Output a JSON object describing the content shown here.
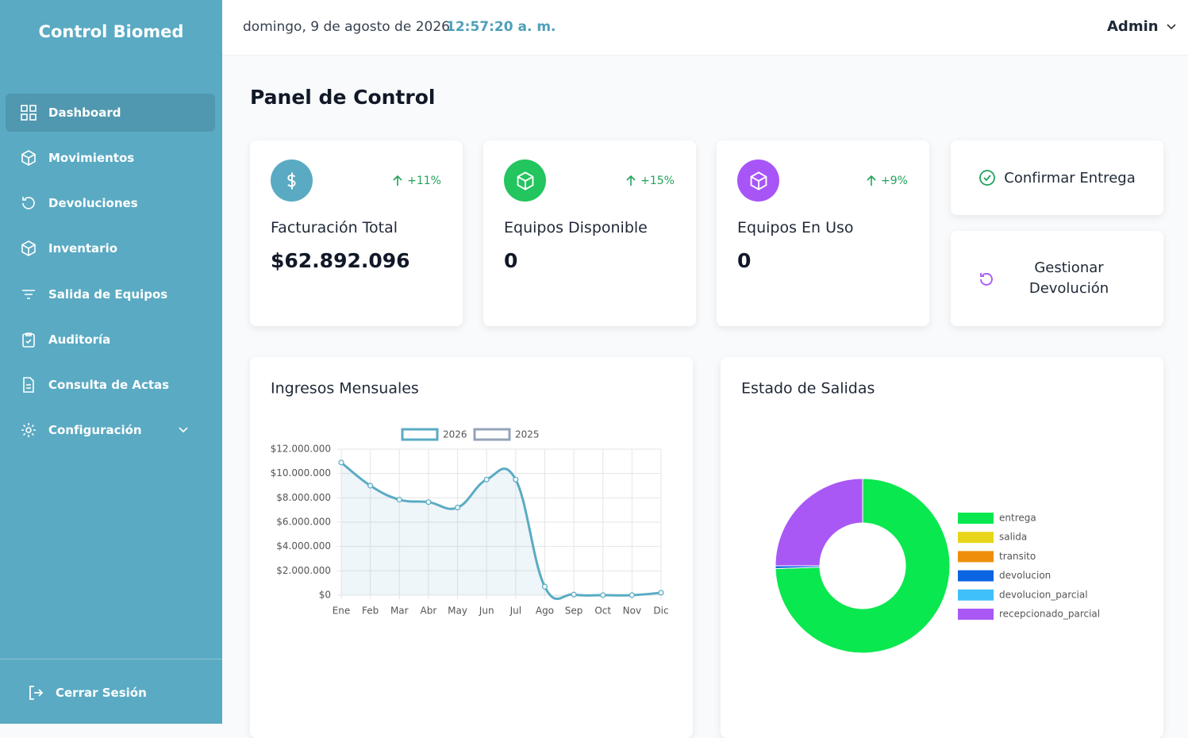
{
  "sidebar": {
    "brand": "Control Biomed",
    "nav": [
      "Dashboard",
      "Movimientos",
      "Devoluciones",
      "Inventario",
      "Salida de Equipos",
      "Auditoría",
      "Consulta de Actas",
      "Configuración"
    ],
    "logout": "Cerrar Sesión"
  },
  "header": {
    "date": "domingo, 9 de agosto de 2026",
    "time": "12:57:20 a. m.",
    "user": "Admin"
  },
  "page_title": "Panel de Control",
  "stats": [
    {
      "label": "Facturación Total",
      "value": "$62.892.096",
      "change": "+11%"
    },
    {
      "label": "Equipos Disponible",
      "value": "0",
      "change": "+15%"
    },
    {
      "label": "Equipos En Uso",
      "value": "0",
      "change": "+9%"
    }
  ],
  "actions": [
    "Confirmar Entrega",
    "Gestionar Devolución"
  ],
  "chart_data": [
    {
      "type": "line",
      "title": "Ingresos Mensuales",
      "categories": [
        "Ene",
        "Feb",
        "Mar",
        "Abr",
        "May",
        "Jun",
        "Jul",
        "Ago",
        "Sep",
        "Oct",
        "Nov",
        "Dic"
      ],
      "series": [
        {
          "name": "2026",
          "color": "#5aabc4",
          "values": [
            10900000,
            9000000,
            7850000,
            7650000,
            7200000,
            9500000,
            9500000,
            700000,
            50000,
            0,
            0,
            200000
          ]
        },
        {
          "name": "2025",
          "color": "#94a3b8",
          "values": [
            null,
            null,
            null,
            null,
            null,
            null,
            null,
            null,
            null,
            null,
            null,
            null
          ]
        }
      ],
      "ylim": [
        0,
        12000000
      ],
      "yticks": [
        {
          "value": 0,
          "label": "$0"
        },
        {
          "value": 2000000,
          "label": "$2.000.000"
        },
        {
          "value": 4000000,
          "label": "$4.000.000"
        },
        {
          "value": 6000000,
          "label": "$6.000.000"
        },
        {
          "value": 8000000,
          "label": "$8.000.000"
        },
        {
          "value": 10000000,
          "label": "$10.000.000"
        },
        {
          "value": 12000000,
          "label": "$12.000.000"
        }
      ],
      "grid": true,
      "legend": "top"
    },
    {
      "type": "pie",
      "title": "Estado de Salidas",
      "categories": [
        "entrega",
        "salida",
        "transito",
        "devolucion",
        "devolucion_parcial",
        "recepcionado_parcial"
      ],
      "values": [
        74.5,
        0,
        0,
        0.5,
        0,
        25
      ],
      "colors": [
        "#0ae84f",
        "#e8d51a",
        "#ee8f0b",
        "#0b65e3",
        "#3fc0fb",
        "#a958f5"
      ],
      "donut": true,
      "legend": "right"
    }
  ]
}
